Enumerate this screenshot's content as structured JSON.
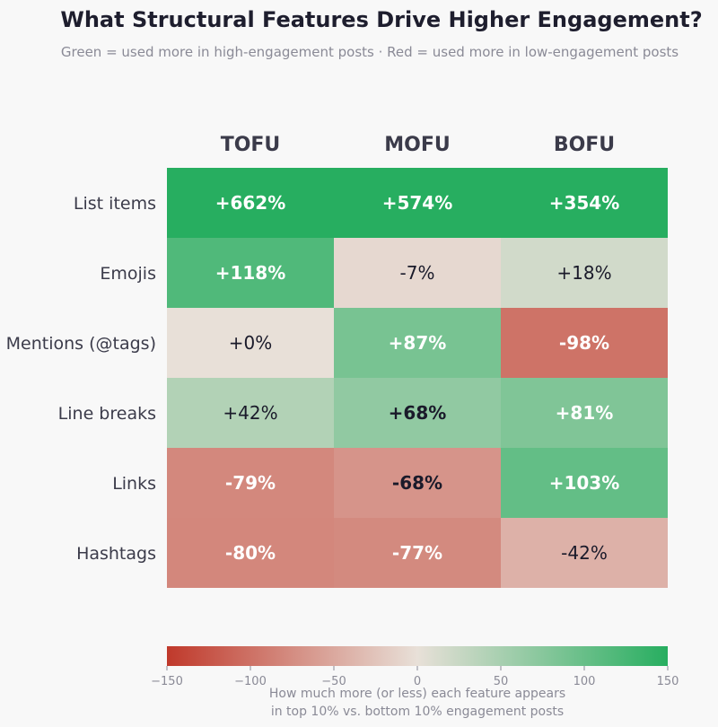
{
  "chart_data": {
    "type": "heatmap",
    "title": "What Structural Features Drive Higher Engagement?",
    "subtitle": "Green = used more in high-engagement posts  ·  Red = used more in low-engagement posts",
    "columns": [
      "TOFU",
      "MOFU",
      "BOFU"
    ],
    "rows": [
      "List items",
      "Emojis",
      "Mentions (@tags)",
      "Line breaks",
      "Links",
      "Hashtags"
    ],
    "values": [
      [
        662,
        574,
        354
      ],
      [
        118,
        -7,
        18
      ],
      [
        0,
        87,
        -98
      ],
      [
        42,
        68,
        81
      ],
      [
        -79,
        -68,
        103
      ],
      [
        -80,
        -77,
        -42
      ]
    ],
    "cell_labels": [
      [
        "+662%",
        "+574%",
        "+354%"
      ],
      [
        "+118%",
        "-7%",
        "+18%"
      ],
      [
        "+0%",
        "+87%",
        "-98%"
      ],
      [
        "+42%",
        "+68%",
        "+81%"
      ],
      [
        "-79%",
        "-68%",
        "+103%"
      ],
      [
        "-80%",
        "-77%",
        "-42%"
      ]
    ],
    "bold_labels": [
      [
        true,
        true,
        true
      ],
      [
        true,
        false,
        false
      ],
      [
        false,
        true,
        true
      ],
      [
        false,
        true,
        true
      ],
      [
        true,
        true,
        true
      ],
      [
        true,
        true,
        false
      ]
    ],
    "light_text": [
      [
        true,
        true,
        true
      ],
      [
        true,
        false,
        false
      ],
      [
        false,
        true,
        true
      ],
      [
        false,
        false,
        true
      ],
      [
        true,
        false,
        true
      ],
      [
        true,
        true,
        false
      ]
    ],
    "color_range": [
      -150,
      150
    ],
    "colorbar_ticks": [
      "−150",
      "−100",
      "−50",
      "0",
      "50",
      "100",
      "150"
    ],
    "colorbar_tick_values": [
      -150,
      -100,
      -50,
      0,
      50,
      100,
      150
    ],
    "colorbar_label_line1": "How much more (or less) each feature appears",
    "colorbar_label_line2": "in top 10% vs. bottom 10% engagement posts",
    "colors": {
      "negative": "#c0392b",
      "neutral": "#e8e0d8",
      "positive": "#27ae60",
      "text_dark": "#1a1a2a",
      "text_light": "#ffffff"
    }
  }
}
